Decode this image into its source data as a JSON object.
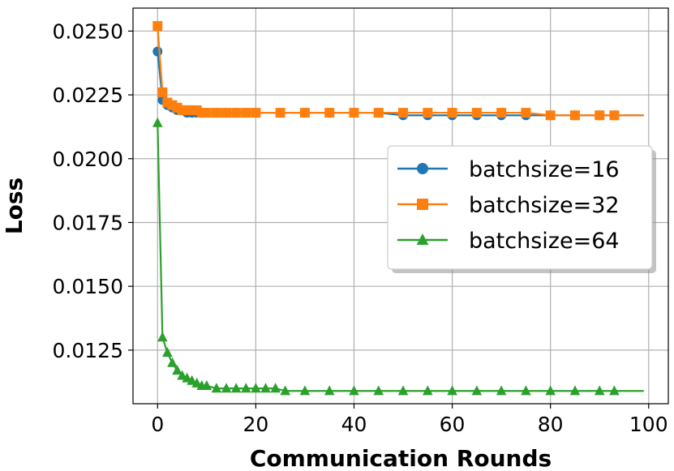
{
  "chart_data": {
    "type": "line",
    "xlabel": "Communication Rounds",
    "ylabel": "Loss",
    "xlim": [
      -5,
      104
    ],
    "ylim": [
      0.0104,
      0.0259
    ],
    "xticks": [
      0,
      20,
      40,
      60,
      80,
      100
    ],
    "yticks": [
      0.0125,
      0.015,
      0.0175,
      0.02,
      0.0225,
      0.025
    ],
    "xtick_labels": [
      "0",
      "20",
      "40",
      "60",
      "80",
      "100"
    ],
    "ytick_labels": [
      "0.0125",
      "0.0150",
      "0.0175",
      "0.0200",
      "0.0225",
      "0.0250"
    ],
    "grid": true,
    "legend_position": "center-right",
    "series": [
      {
        "name": "batchsize=16",
        "color": "#1f77b4",
        "marker": "circle",
        "x": [
          0,
          1,
          2,
          3,
          4,
          5,
          6,
          7,
          8,
          9,
          10,
          12,
          14,
          16,
          18,
          20,
          25,
          30,
          35,
          40,
          45,
          50,
          55,
          60,
          65,
          70,
          75,
          80,
          85,
          90,
          93,
          95,
          99
        ],
        "y": [
          0.0242,
          0.0223,
          0.0221,
          0.022,
          0.0219,
          0.0219,
          0.0218,
          0.0218,
          0.0218,
          0.0218,
          0.0218,
          0.0218,
          0.0218,
          0.0218,
          0.0218,
          0.0218,
          0.0218,
          0.0218,
          0.0218,
          0.0218,
          0.0218,
          0.0217,
          0.0217,
          0.0217,
          0.0217,
          0.0217,
          0.0217,
          0.0217,
          0.0217,
          0.0217,
          0.0217,
          0.0217,
          0.0217
        ]
      },
      {
        "name": "batchsize=32",
        "color": "#ff7f0e",
        "marker": "square",
        "x": [
          0,
          1,
          2,
          3,
          4,
          5,
          6,
          7,
          8,
          9,
          10,
          12,
          14,
          16,
          18,
          20,
          25,
          30,
          35,
          40,
          45,
          50,
          55,
          60,
          65,
          70,
          75,
          80,
          85,
          90,
          93,
          95,
          99
        ],
        "y": [
          0.0252,
          0.0226,
          0.0222,
          0.0221,
          0.022,
          0.0219,
          0.0219,
          0.0219,
          0.0219,
          0.0218,
          0.0218,
          0.0218,
          0.0218,
          0.0218,
          0.0218,
          0.0218,
          0.0218,
          0.0218,
          0.0218,
          0.0218,
          0.0218,
          0.0218,
          0.0218,
          0.0218,
          0.0218,
          0.0218,
          0.0218,
          0.0217,
          0.0217,
          0.0217,
          0.0217,
          0.0217,
          0.0217
        ]
      },
      {
        "name": "batchsize=64",
        "color": "#2ca02c",
        "marker": "triangle",
        "x": [
          0,
          1,
          2,
          3,
          4,
          5,
          6,
          7,
          8,
          9,
          10,
          12,
          14,
          16,
          18,
          20,
          22,
          24,
          26,
          30,
          35,
          40,
          45,
          50,
          55,
          60,
          65,
          70,
          75,
          80,
          85,
          90,
          93,
          95,
          99
        ],
        "y": [
          0.0214,
          0.013,
          0.0124,
          0.012,
          0.0117,
          0.0115,
          0.0114,
          0.0113,
          0.0112,
          0.0111,
          0.0111,
          0.011,
          0.011,
          0.011,
          0.011,
          0.011,
          0.011,
          0.011,
          0.0109,
          0.0109,
          0.0109,
          0.0109,
          0.0109,
          0.0109,
          0.0109,
          0.0109,
          0.0109,
          0.0109,
          0.0109,
          0.0109,
          0.0109,
          0.0109,
          0.0109,
          0.0109,
          0.0109
        ]
      }
    ]
  }
}
